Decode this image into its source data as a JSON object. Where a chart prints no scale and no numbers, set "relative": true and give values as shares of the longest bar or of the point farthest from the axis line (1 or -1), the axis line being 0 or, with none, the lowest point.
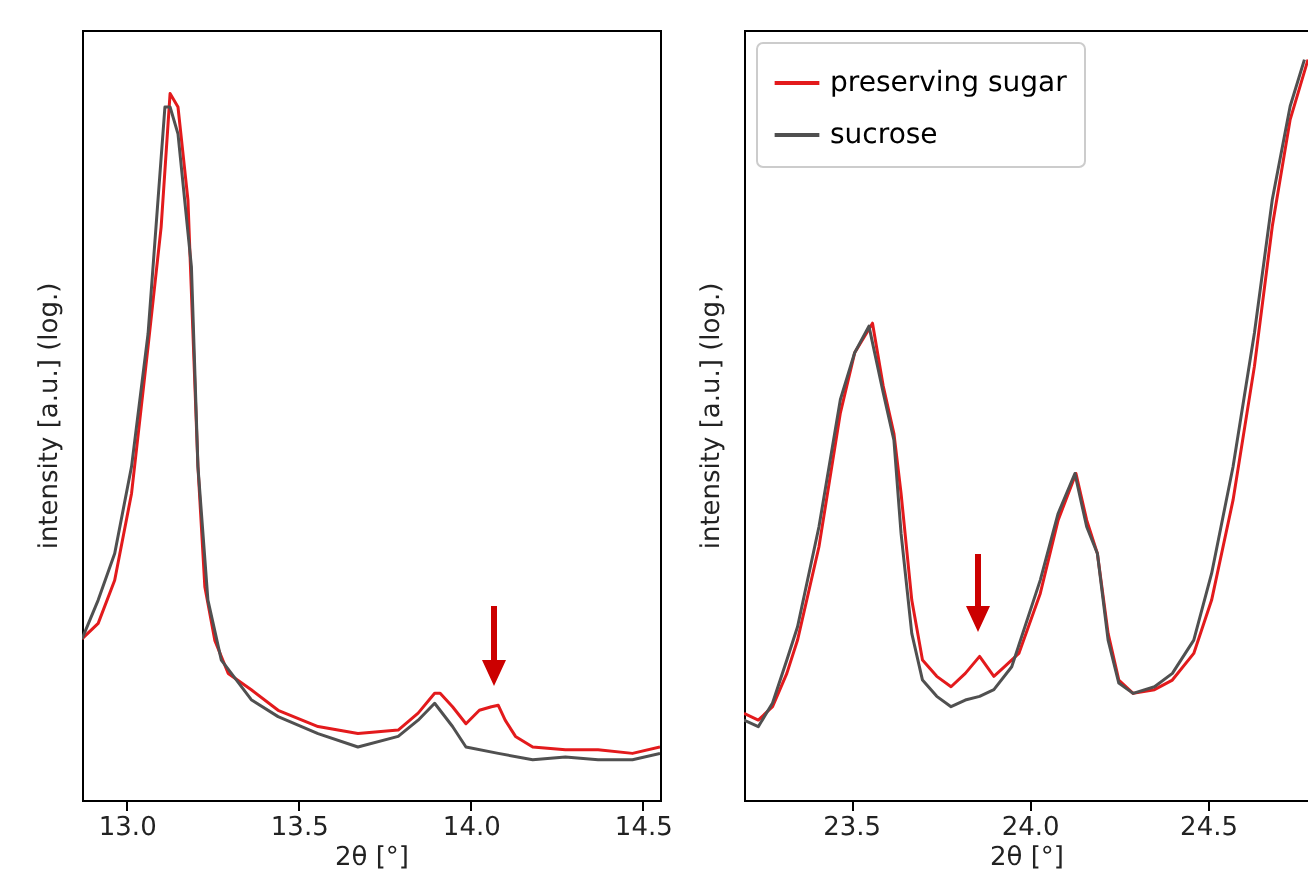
{
  "chart_data": [
    {
      "type": "line",
      "relative": true,
      "xlabel": "2θ [°]",
      "ylabel": "intensity [a.u.] (log.)",
      "xlim": [
        12.87,
        14.55
      ],
      "xticks": [
        {
          "value": 13,
          "label": "13.0"
        },
        {
          "value": 13.5,
          "label": "13.5"
        },
        {
          "value": 14,
          "label": "14.0"
        },
        {
          "value": 14.5,
          "label": "14.5"
        }
      ],
      "tick_labels": "x",
      "legend": false,
      "line_style": "solid",
      "series": [
        {
          "color": "#e31a1c",
          "x": [
            12.87,
            12.917,
            12.965,
            13.014,
            13.062,
            13.1,
            13.126,
            13.149,
            13.178,
            13.207,
            13.227,
            13.256,
            13.295,
            13.362,
            13.44,
            13.556,
            13.672,
            13.789,
            13.847,
            13.895,
            13.911,
            13.947,
            13.986,
            14.025,
            14.06,
            14.08,
            14.1,
            14.13,
            14.18,
            14.275,
            14.37,
            14.47,
            14.55
          ],
          "values": [
            0.228,
            0.25,
            0.311,
            0.434,
            0.642,
            0.811,
            1.0,
            0.981,
            0.849,
            0.472,
            0.302,
            0.226,
            0.179,
            0.156,
            0.127,
            0.104,
            0.094,
            0.099,
            0.123,
            0.151,
            0.151,
            0.132,
            0.108,
            0.127,
            0.132,
            0.134,
            0.113,
            0.09,
            0.075,
            0.071,
            0.071,
            0.066,
            0.075
          ]
        },
        {
          "color": "#505050",
          "x": [
            12.87,
            12.917,
            12.965,
            13.014,
            13.062,
            13.111,
            13.126,
            13.149,
            13.188,
            13.207,
            13.236,
            13.275,
            13.362,
            13.44,
            13.556,
            13.672,
            13.789,
            13.847,
            13.895,
            13.947,
            13.986,
            14.08,
            14.18,
            14.275,
            14.37,
            14.47,
            14.55
          ],
          "values": [
            0.228,
            0.283,
            0.349,
            0.472,
            0.66,
            0.981,
            0.981,
            0.943,
            0.755,
            0.472,
            0.283,
            0.198,
            0.142,
            0.118,
            0.094,
            0.075,
            0.09,
            0.113,
            0.137,
            0.104,
            0.075,
            0.066,
            0.057,
            0.061,
            0.057,
            0.057,
            0.066
          ]
        }
      ]
    },
    {
      "type": "line",
      "relative": true,
      "xlabel": "2θ [°]",
      "ylabel": "intensity [a.u.] (log.)",
      "xlim": [
        23.2,
        24.78
      ],
      "xticks": [
        {
          "value": 23.5,
          "label": "23.5"
        },
        {
          "value": 24,
          "label": "24.0"
        },
        {
          "value": 24.5,
          "label": "24.5"
        }
      ],
      "tick_labels": "x",
      "legend": "top left",
      "line_style": "solid",
      "series": [
        {
          "name": "preserving sugar",
          "color": "#e31a1c",
          "x": [
            23.2,
            23.24,
            23.28,
            23.32,
            23.35,
            23.41,
            23.47,
            23.51,
            23.56,
            23.59,
            23.62,
            23.64,
            23.67,
            23.7,
            23.74,
            23.78,
            23.82,
            23.86,
            23.9,
            23.93,
            23.97,
            24.03,
            24.08,
            24.13,
            24.16,
            24.19,
            24.22,
            24.25,
            24.29,
            24.35,
            24.4,
            24.46,
            24.51,
            24.57,
            24.63,
            24.68,
            24.73,
            24.78
          ],
          "values": [
            0.117,
            0.108,
            0.126,
            0.171,
            0.216,
            0.342,
            0.523,
            0.604,
            0.644,
            0.559,
            0.495,
            0.414,
            0.27,
            0.189,
            0.167,
            0.153,
            0.171,
            0.194,
            0.167,
            0.18,
            0.198,
            0.279,
            0.378,
            0.441,
            0.378,
            0.333,
            0.225,
            0.162,
            0.144,
            0.149,
            0.162,
            0.198,
            0.27,
            0.405,
            0.586,
            0.775,
            0.919,
            1.0
          ]
        },
        {
          "name": "sucrose",
          "color": "#505050",
          "x": [
            23.2,
            23.24,
            23.28,
            23.32,
            23.35,
            23.41,
            23.47,
            23.51,
            23.55,
            23.59,
            23.62,
            23.64,
            23.67,
            23.7,
            23.74,
            23.78,
            23.82,
            23.86,
            23.9,
            23.95,
            24.03,
            24.08,
            24.127,
            24.16,
            24.19,
            24.22,
            24.25,
            24.29,
            24.35,
            24.4,
            24.46,
            24.51,
            24.57,
            24.63,
            24.68,
            24.73,
            24.77
          ],
          "values": [
            0.108,
            0.099,
            0.131,
            0.189,
            0.234,
            0.369,
            0.541,
            0.604,
            0.64,
            0.55,
            0.486,
            0.36,
            0.225,
            0.162,
            0.14,
            0.126,
            0.135,
            0.14,
            0.149,
            0.18,
            0.297,
            0.387,
            0.441,
            0.369,
            0.333,
            0.216,
            0.158,
            0.144,
            0.153,
            0.171,
            0.216,
            0.306,
            0.45,
            0.631,
            0.811,
            0.937,
            1.0
          ]
        }
      ]
    }
  ]
}
